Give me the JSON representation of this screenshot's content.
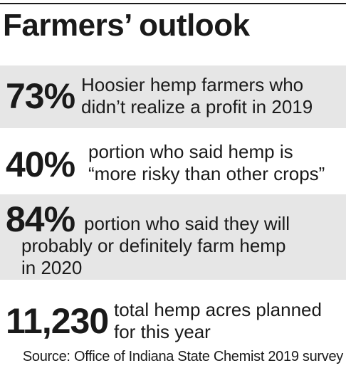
{
  "title": "Farmers’ outlook",
  "stats": [
    {
      "value": "73%",
      "lines": [
        "Hoosier hemp farmers who",
        "didn’t realize a profit in 2019"
      ]
    },
    {
      "value": "40%",
      "lines": [
        "portion who said hemp is",
        "“more risky than other crops”"
      ]
    },
    {
      "value": "84%",
      "lines": [
        "portion who said they will",
        "probably or definitely farm hemp",
        "in 2020"
      ]
    },
    {
      "value": "11,230",
      "lines": [
        "total hemp acres planned",
        "for this year"
      ]
    }
  ],
  "source": "Source: Office of Indiana State Chemist 2019 survey",
  "colors": {
    "band": "#e6e6e6",
    "text": "#1a1a1a",
    "background": "#ffffff"
  }
}
